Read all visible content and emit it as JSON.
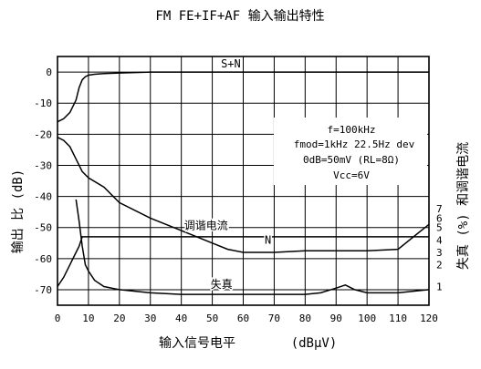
{
  "chart_data": {
    "type": "line",
    "title": "FM  FE+IF+AF 输入输出特性",
    "xlabel": "输入信号电平",
    "xunit": "(dBμV)",
    "ylabel_left": "输出 比 (dB)",
    "ylabel_right": "失真 (%) 和调谐电流",
    "xlim": [
      0,
      120
    ],
    "ylim": [
      -75,
      5
    ],
    "x_ticks": [
      "0",
      "10",
      "20",
      "30",
      "40",
      "50",
      "60",
      "70",
      "80",
      "90",
      "100",
      "110",
      "120"
    ],
    "y_ticks": [
      "0",
      "-10",
      "-20",
      "-30",
      "-40",
      "-50",
      "-60",
      "-70"
    ],
    "y_tick_values": [
      0,
      -10,
      -20,
      -30,
      -40,
      -50,
      -60,
      -70
    ],
    "right_ticks": [
      "7",
      "6",
      "5",
      "4",
      "3",
      "2",
      "1"
    ],
    "right_tick_positions_db": [
      -44,
      -47,
      -50,
      -54,
      -58,
      -62,
      -69
    ],
    "annotations": [
      "f=100kHz",
      "fmod=1kHz 22.5Hz dev",
      "0dB=50mV (RL=8Ω)",
      "Vcc=6V"
    ],
    "grid": true,
    "series": [
      {
        "name": "S+N",
        "x": [
          0,
          2,
          4,
          6,
          7,
          8,
          9,
          10,
          12,
          15,
          20,
          30,
          40,
          60,
          80,
          100,
          120
        ],
        "y": [
          -16,
          -15,
          -13,
          -9,
          -5,
          -2.5,
          -1.5,
          -1,
          -0.7,
          -0.5,
          -0.3,
          0,
          0,
          0,
          0,
          0,
          0
        ]
      },
      {
        "name": "N",
        "x": [
          0,
          2,
          4,
          6,
          8,
          10,
          15,
          20,
          30,
          40,
          50,
          55,
          60,
          70,
          80,
          90,
          100,
          110,
          115,
          120
        ],
        "y": [
          -21,
          -22,
          -24,
          -28,
          -32,
          -34,
          -37,
          -42,
          -47,
          -51,
          -55,
          -57,
          -58,
          -58,
          -57.5,
          -57.5,
          -57.5,
          -57,
          -53,
          -49
        ]
      },
      {
        "name": "调谐电流",
        "x": [
          0,
          2,
          4,
          6,
          7,
          8,
          10,
          20,
          40,
          60,
          80,
          100,
          110,
          120
        ],
        "y": [
          -69,
          -66,
          -62,
          -58,
          -56,
          -53,
          -53,
          -53,
          -53,
          -53,
          -53,
          -53,
          -53,
          -53
        ]
      },
      {
        "name": "失真",
        "x": [
          6,
          7,
          8,
          9,
          10,
          12,
          15,
          20,
          30,
          40,
          60,
          80,
          85,
          90,
          93,
          96,
          100,
          110,
          120
        ],
        "y": [
          -41,
          -48,
          -56,
          -62,
          -64,
          -67,
          -69,
          -70,
          -71,
          -71.5,
          -71.5,
          -71.5,
          -71,
          -69.5,
          -68.5,
          -70,
          -71,
          -71,
          -70
        ]
      }
    ],
    "series_labels": [
      {
        "series": "S+N",
        "text": "S+N",
        "x": 56,
        "y": 1.5
      },
      {
        "series": "调谐电流",
        "text": "调谐电流",
        "x": 48,
        "y": -50.5
      },
      {
        "series": "N",
        "text": "N",
        "x": 68,
        "y": -55.2
      },
      {
        "series": "失真",
        "text": "失真",
        "x": 53,
        "y": -69.5
      }
    ]
  }
}
